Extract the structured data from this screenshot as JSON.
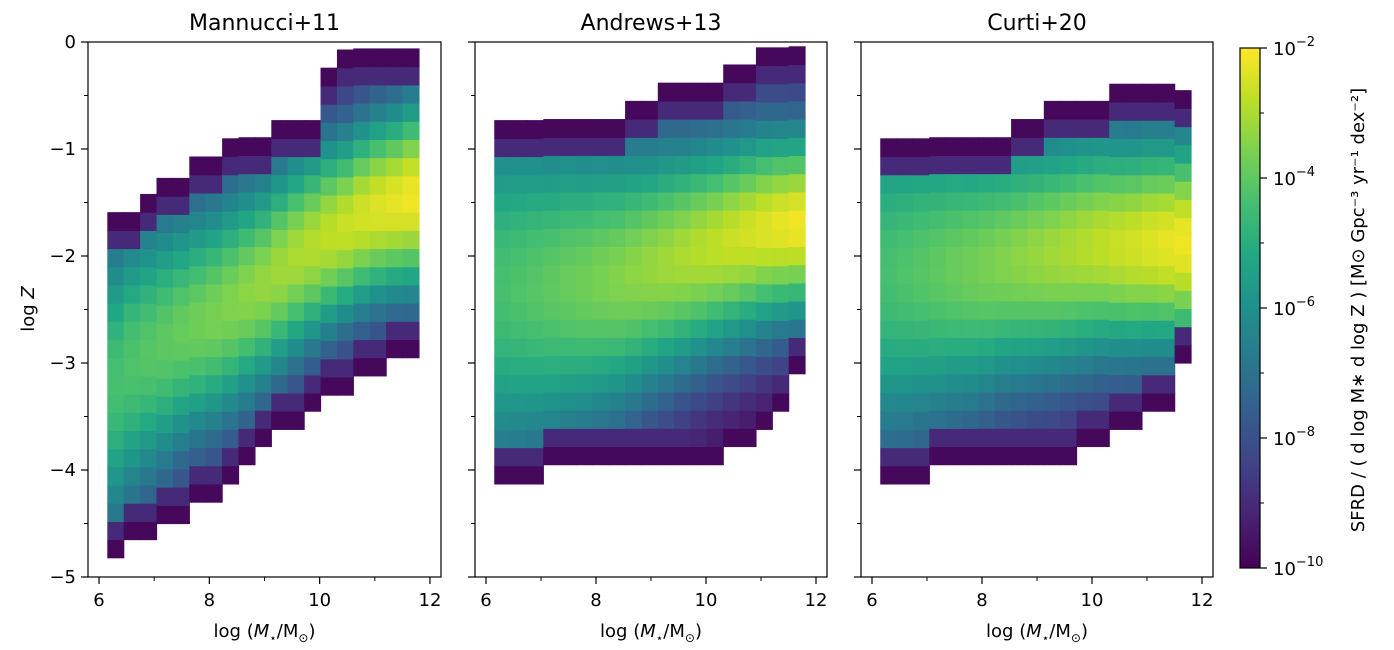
{
  "chart_data": {
    "type": "heatmap",
    "panels": [
      {
        "title": "Mannucci+11",
        "xlabel": "log (M⋆/M⊙)",
        "ylabel": "log Z"
      },
      {
        "title": "Andrews+13",
        "xlabel": "log (M⋆/M⊙)",
        "ylabel": ""
      },
      {
        "title": "Curti+20",
        "xlabel": "log (M⋆/M⊙)",
        "ylabel": ""
      }
    ],
    "xlim": [
      5.8,
      12.2
    ],
    "ylim": [
      -5,
      0
    ],
    "x_ticks": [
      6,
      8,
      10,
      12
    ],
    "x_tick_labels": [
      "6",
      "8",
      "10",
      "12"
    ],
    "y_ticks": [
      0,
      -1,
      -2,
      -3,
      -4,
      -5
    ],
    "y_tick_labels": [
      "0",
      "−1",
      "−2",
      "−3",
      "−4",
      "−5"
    ],
    "bin_width_logM": 0.34,
    "bin_width_logZ": 0.17,
    "colorbar": {
      "label": "SFRD / ( d log M∗ d log Z ) [M⊙ Gpc⁻³ yr⁻¹ dex⁻²]",
      "scale": "log",
      "range": [
        1e-10,
        0.01
      ],
      "ticks": [
        {
          "base": "10",
          "exp": "−2",
          "log": -2
        },
        {
          "base": "10",
          "exp": "−4",
          "log": -4
        },
        {
          "base": "10",
          "exp": "−6",
          "log": -6
        },
        {
          "base": "10",
          "exp": "−8",
          "log": -8
        },
        {
          "base": "10",
          "exp": "−10",
          "log": -10
        }
      ]
    },
    "colormap": "viridis",
    "series": [
      {
        "grid_logM_range": [
          6.15,
          11.8
        ],
        "columns": [
          [
            -4.82,
            -1.55,
            -3.18,
            1.15
          ],
          [
            -4.65,
            -1.55,
            -3.0,
            1.1
          ],
          [
            -4.65,
            -1.38,
            -2.9,
            1.05
          ],
          [
            -4.5,
            -1.22,
            -2.8,
            1.0
          ],
          [
            -4.5,
            -1.22,
            -2.7,
            0.95
          ],
          [
            -4.3,
            -1.05,
            -2.62,
            0.92
          ],
          [
            -4.3,
            -1.05,
            -2.55,
            0.9
          ],
          [
            -4.13,
            -0.88,
            -2.45,
            0.88
          ],
          [
            -3.95,
            -0.88,
            -2.35,
            0.85
          ],
          [
            -3.78,
            -0.88,
            -2.25,
            0.82
          ],
          [
            -3.62,
            -0.72,
            -2.12,
            0.8
          ],
          [
            -3.62,
            -0.72,
            -2.0,
            0.78
          ],
          [
            -3.45,
            -0.72,
            -1.9,
            0.76
          ],
          [
            -3.3,
            -0.3,
            -1.8,
            0.74
          ],
          [
            -3.3,
            0.0,
            -1.72,
            0.72
          ],
          [
            -3.12,
            0.0,
            -1.62,
            0.72
          ],
          [
            -3.12,
            0.0,
            -1.55,
            0.72
          ],
          [
            -2.95,
            0.0,
            -1.5,
            0.72
          ],
          [
            -2.95,
            0.0,
            -1.45,
            0.74
          ]
        ]
      },
      {
        "grid_logM_range": [
          6.15,
          11.8
        ],
        "columns": [
          [
            -4.13,
            -0.72,
            -2.3,
            1.4
          ],
          [
            -4.13,
            -0.72,
            -2.3,
            1.35
          ],
          [
            -4.13,
            -0.72,
            -2.28,
            1.3
          ],
          [
            -3.95,
            -0.72,
            -2.28,
            1.25
          ],
          [
            -3.95,
            -0.72,
            -2.25,
            1.2
          ],
          [
            -3.95,
            -0.72,
            -2.25,
            1.15
          ],
          [
            -3.95,
            -0.72,
            -2.22,
            1.1
          ],
          [
            -3.95,
            -0.72,
            -2.2,
            1.05
          ],
          [
            -3.95,
            -0.55,
            -2.15,
            1.0
          ],
          [
            -3.95,
            -0.55,
            -2.1,
            0.95
          ],
          [
            -3.95,
            -0.38,
            -2.05,
            0.92
          ],
          [
            -3.95,
            -0.38,
            -2.0,
            0.88
          ],
          [
            -3.95,
            -0.38,
            -1.95,
            0.85
          ],
          [
            -3.95,
            -0.38,
            -1.9,
            0.82
          ],
          [
            -3.78,
            -0.22,
            -1.85,
            0.8
          ],
          [
            -3.78,
            -0.22,
            -1.8,
            0.78
          ],
          [
            -3.62,
            -0.05,
            -1.75,
            0.76
          ],
          [
            -3.45,
            0.0,
            -1.72,
            0.74
          ],
          [
            -3.1,
            0.0,
            -1.7,
            0.72
          ]
        ]
      },
      {
        "grid_logM_range": [
          6.15,
          11.8
        ],
        "columns": [
          [
            -4.13,
            -0.88,
            -2.15,
            1.35
          ],
          [
            -4.13,
            -0.88,
            -2.15,
            1.3
          ],
          [
            -4.13,
            -0.88,
            -2.12,
            1.25
          ],
          [
            -3.95,
            -0.88,
            -2.12,
            1.2
          ],
          [
            -3.95,
            -0.88,
            -2.1,
            1.15
          ],
          [
            -3.95,
            -0.88,
            -2.1,
            1.1
          ],
          [
            -3.95,
            -0.88,
            -2.08,
            1.05
          ],
          [
            -3.95,
            -0.88,
            -2.05,
            1.0
          ],
          [
            -3.95,
            -0.72,
            -2.02,
            0.98
          ],
          [
            -3.95,
            -0.72,
            -2.0,
            0.96
          ],
          [
            -3.95,
            -0.55,
            -1.98,
            0.94
          ],
          [
            -3.95,
            -0.55,
            -1.95,
            0.92
          ],
          [
            -3.78,
            -0.55,
            -1.92,
            0.9
          ],
          [
            -3.78,
            -0.55,
            -1.9,
            0.88
          ],
          [
            -3.62,
            -0.38,
            -1.9,
            0.86
          ],
          [
            -3.62,
            -0.38,
            -1.9,
            0.85
          ],
          [
            -3.45,
            -0.38,
            -1.88,
            0.84
          ],
          [
            -3.45,
            -0.38,
            -1.88,
            0.83
          ],
          [
            -3.0,
            -0.5,
            -1.88,
            0.82
          ]
        ]
      }
    ]
  }
}
